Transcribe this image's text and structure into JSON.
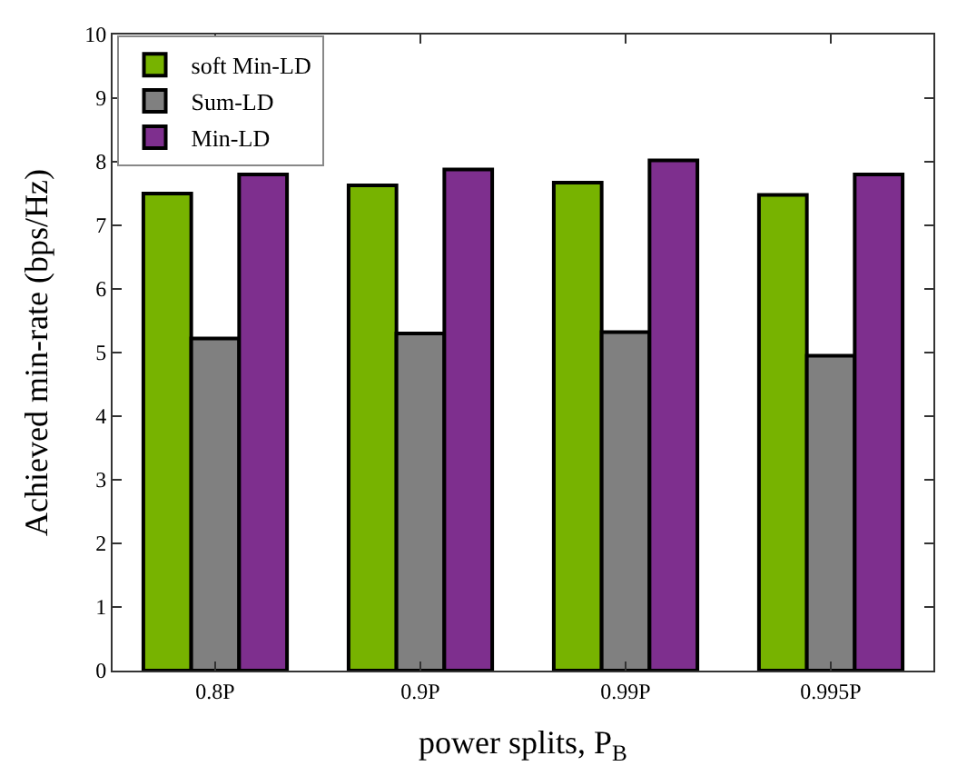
{
  "chart_data": {
    "type": "bar",
    "xlabel": "power splits, P$_{B}$",
    "ylabel": "Achieved min-rate (bps/Hz)",
    "categories": [
      "0.8P",
      "0.9P",
      "0.99P",
      "0.995P"
    ],
    "series": [
      {
        "name": "soft Min-LD",
        "color": "#77b300",
        "values": [
          7.5,
          7.63,
          7.67,
          7.48
        ]
      },
      {
        "name": "Sum-LD",
        "color": "#808080",
        "values": [
          5.22,
          5.3,
          5.32,
          4.95
        ]
      },
      {
        "name": "Min-LD",
        "color": "#7e2f8e",
        "values": [
          7.8,
          7.88,
          8.02,
          7.8
        ]
      }
    ],
    "ylim": [
      0,
      10
    ],
    "yticks": [
      0,
      1,
      2,
      3,
      4,
      5,
      6,
      7,
      8,
      9,
      10
    ],
    "legend": "top left"
  }
}
